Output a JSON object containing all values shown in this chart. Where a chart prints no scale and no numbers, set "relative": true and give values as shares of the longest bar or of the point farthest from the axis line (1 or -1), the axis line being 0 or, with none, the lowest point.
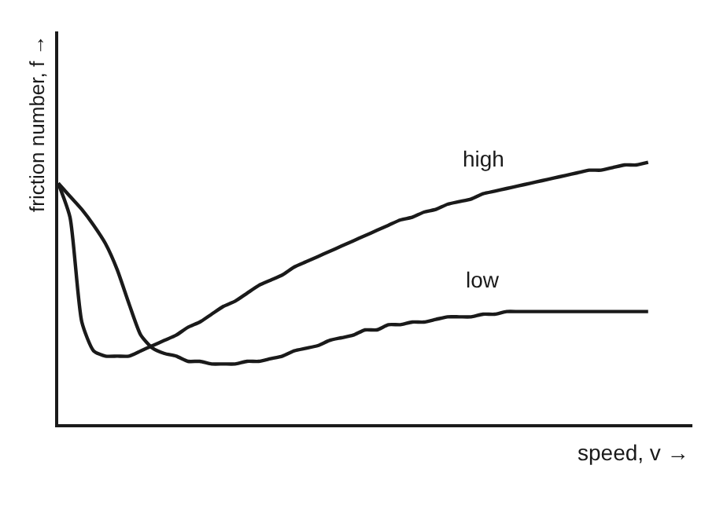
{
  "chart_data": {
    "type": "line",
    "relative": true,
    "xlabel": "speed, v →",
    "ylabel": "friction number, f →",
    "categories": [
      null,
      null,
      null,
      null,
      null,
      null,
      null,
      null,
      null,
      null,
      null,
      null,
      null,
      null,
      null,
      null,
      null,
      null,
      null,
      null,
      null,
      null,
      null,
      null,
      null,
      null,
      null,
      null,
      null,
      null,
      null,
      null,
      null,
      null,
      null,
      null,
      null,
      null,
      null,
      null,
      null,
      null,
      null,
      null,
      null,
      null,
      null,
      null,
      null,
      null,
      null
    ],
    "series": [
      {
        "name": "high",
        "color": "#1a1a1a",
        "values": [
          0.92,
          0.79,
          0.39,
          0.28,
          0.26,
          0.26,
          0.26,
          0.28,
          0.3,
          0.32,
          0.34,
          0.37,
          0.39,
          0.42,
          0.45,
          0.47,
          0.5,
          0.53,
          0.55,
          0.57,
          0.6,
          0.62,
          0.64,
          0.66,
          0.68,
          0.7,
          0.72,
          0.74,
          0.76,
          0.78,
          0.79,
          0.81,
          0.82,
          0.84,
          0.85,
          0.86,
          0.88,
          0.89,
          0.9,
          0.91,
          0.92,
          0.93,
          0.94,
          0.95,
          0.96,
          0.97,
          0.97,
          0.98,
          0.99,
          0.99,
          1
        ]
      },
      {
        "name": "low",
        "color": "#1a1a1a",
        "values": [
          0.92,
          0.87,
          0.82,
          0.76,
          0.69,
          0.59,
          0.46,
          0.34,
          0.29,
          0.27,
          0.26,
          0.24,
          0.24,
          0.23,
          0.23,
          0.23,
          0.24,
          0.24,
          0.25,
          0.26,
          0.28,
          0.29,
          0.3,
          0.32,
          0.33,
          0.34,
          0.36,
          0.36,
          0.38,
          0.38,
          0.39,
          0.39,
          0.4,
          0.41,
          0.41,
          0.41,
          0.42,
          0.42,
          0.43,
          0.43,
          0.43,
          0.43,
          0.43,
          0.43,
          0.43,
          0.43,
          0.43,
          0.43,
          0.43,
          0.43,
          0.43
        ]
      }
    ],
    "legend": false,
    "marker": "none",
    "line_style": "solid"
  }
}
